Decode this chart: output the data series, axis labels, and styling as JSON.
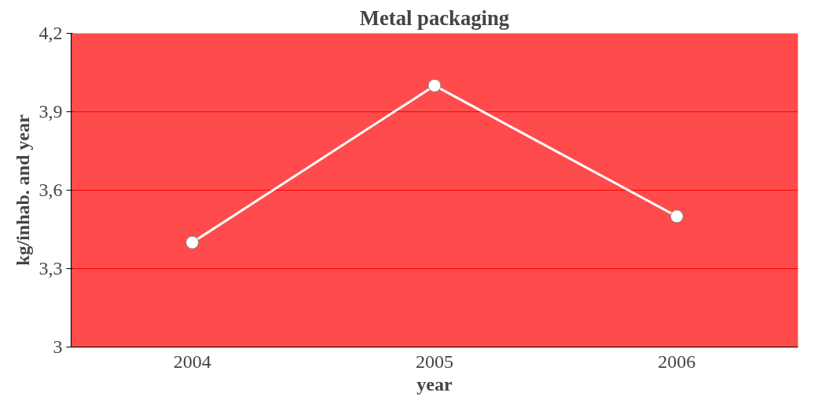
{
  "chart_data": {
    "type": "line",
    "title": "Metal packaging",
    "xlabel": "year",
    "ylabel": "kg/inhab. and year",
    "categories": [
      "2004",
      "2005",
      "2006"
    ],
    "series": [
      {
        "color": "#ffffff",
        "values": [
          3.4,
          4.0,
          3.5
        ]
      }
    ],
    "ylim": [
      3,
      4.2
    ],
    "yticks": [
      3,
      {
        "value": 3.3,
        "label": "3,3"
      },
      {
        "value": 3.6,
        "label": "3,6"
      },
      {
        "value": 3.9,
        "label": "3,9"
      },
      {
        "value": 4.2,
        "label": "4,2"
      }
    ],
    "grid": "y",
    "marker": "circle",
    "line_style": "solid"
  }
}
